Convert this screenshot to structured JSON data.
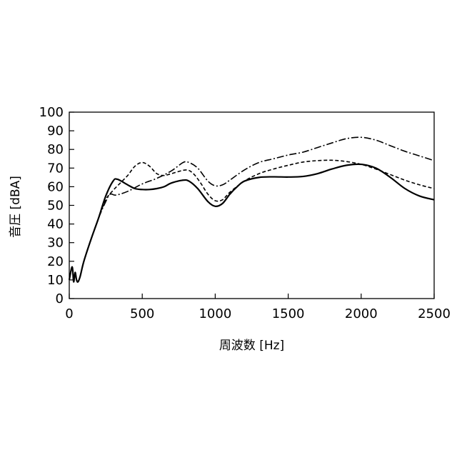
{
  "chart_data": {
    "type": "line",
    "title": "",
    "xlabel": "周波数 [Hz]",
    "ylabel": "音圧 [dBA]",
    "xlim": [
      0,
      2500
    ],
    "ylim": [
      0,
      100
    ],
    "x_ticks": [
      0,
      500,
      1000,
      1500,
      2000,
      2500
    ],
    "y_ticks": [
      0,
      10,
      20,
      30,
      40,
      50,
      60,
      70,
      80,
      90,
      100
    ],
    "grid": false,
    "legend": "none",
    "series": [
      {
        "style": "solid",
        "color": "#000000",
        "points": [
          [
            0,
            10
          ],
          [
            20,
            17
          ],
          [
            30,
            9
          ],
          [
            40,
            14
          ],
          [
            50,
            10
          ],
          [
            60,
            9
          ],
          [
            75,
            12
          ],
          [
            100,
            20
          ],
          [
            150,
            32
          ],
          [
            200,
            43
          ],
          [
            250,
            55
          ],
          [
            300,
            63
          ],
          [
            330,
            64
          ],
          [
            400,
            61
          ],
          [
            450,
            59
          ],
          [
            500,
            58.5
          ],
          [
            550,
            58.5
          ],
          [
            600,
            59
          ],
          [
            650,
            60
          ],
          [
            700,
            62
          ],
          [
            780,
            63.5
          ],
          [
            820,
            63
          ],
          [
            880,
            59
          ],
          [
            950,
            52
          ],
          [
            1000,
            49.5
          ],
          [
            1050,
            51
          ],
          [
            1100,
            56
          ],
          [
            1150,
            60
          ],
          [
            1200,
            63
          ],
          [
            1300,
            65
          ],
          [
            1400,
            65.3
          ],
          [
            1500,
            65.2
          ],
          [
            1600,
            65.5
          ],
          [
            1700,
            67
          ],
          [
            1800,
            69.5
          ],
          [
            1900,
            71.5
          ],
          [
            2000,
            72
          ],
          [
            2100,
            70
          ],
          [
            2200,
            65
          ],
          [
            2300,
            59
          ],
          [
            2400,
            55
          ],
          [
            2500,
            53
          ]
        ]
      },
      {
        "style": "dashed",
        "color": "#000000",
        "points": [
          [
            0,
            10
          ],
          [
            20,
            17
          ],
          [
            30,
            9
          ],
          [
            40,
            14
          ],
          [
            50,
            10
          ],
          [
            60,
            9
          ],
          [
            75,
            12
          ],
          [
            100,
            20
          ],
          [
            150,
            32
          ],
          [
            200,
            43
          ],
          [
            250,
            53
          ],
          [
            300,
            58
          ],
          [
            350,
            62
          ],
          [
            400,
            66
          ],
          [
            450,
            71
          ],
          [
            500,
            73
          ],
          [
            550,
            71
          ],
          [
            600,
            67
          ],
          [
            650,
            66
          ],
          [
            700,
            67
          ],
          [
            800,
            69
          ],
          [
            850,
            67
          ],
          [
            900,
            62
          ],
          [
            950,
            56
          ],
          [
            1000,
            52.5
          ],
          [
            1050,
            53
          ],
          [
            1100,
            57
          ],
          [
            1200,
            63
          ],
          [
            1300,
            67
          ],
          [
            1400,
            69.5
          ],
          [
            1500,
            71.5
          ],
          [
            1600,
            73.2
          ],
          [
            1700,
            74
          ],
          [
            1800,
            74.2
          ],
          [
            1900,
            73.5
          ],
          [
            2000,
            72
          ],
          [
            2100,
            69.5
          ],
          [
            2200,
            66.5
          ],
          [
            2300,
            63.5
          ],
          [
            2400,
            61
          ],
          [
            2500,
            59
          ]
        ]
      },
      {
        "style": "dash-dot",
        "color": "#000000",
        "points": [
          [
            0,
            10
          ],
          [
            20,
            17
          ],
          [
            30,
            9
          ],
          [
            40,
            14
          ],
          [
            50,
            10
          ],
          [
            60,
            9
          ],
          [
            75,
            12
          ],
          [
            100,
            20
          ],
          [
            150,
            32
          ],
          [
            200,
            43
          ],
          [
            250,
            52
          ],
          [
            280,
            56
          ],
          [
            320,
            55.5
          ],
          [
            400,
            57.5
          ],
          [
            500,
            61.5
          ],
          [
            600,
            64.5
          ],
          [
            700,
            68.5
          ],
          [
            780,
            73
          ],
          [
            820,
            73
          ],
          [
            880,
            70
          ],
          [
            950,
            63
          ],
          [
            1000,
            60.5
          ],
          [
            1050,
            61
          ],
          [
            1100,
            63.5
          ],
          [
            1200,
            69
          ],
          [
            1300,
            73
          ],
          [
            1400,
            75
          ],
          [
            1500,
            77
          ],
          [
            1600,
            78.5
          ],
          [
            1700,
            81
          ],
          [
            1800,
            83.5
          ],
          [
            1900,
            85.8
          ],
          [
            2000,
            86.5
          ],
          [
            2100,
            85
          ],
          [
            2200,
            82
          ],
          [
            2300,
            79
          ],
          [
            2400,
            76.5
          ],
          [
            2500,
            74
          ]
        ]
      }
    ]
  }
}
